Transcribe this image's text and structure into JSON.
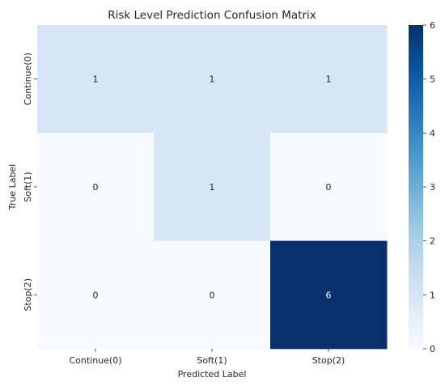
{
  "chart_data": {
    "type": "heatmap",
    "title": "Risk Level Prediction Confusion Matrix",
    "xlabel": "Predicted Label",
    "ylabel": "True Label",
    "x_categories": [
      "Continue(0)",
      "Soft(1)",
      "Stop(2)"
    ],
    "y_categories": [
      "Continue(0)",
      "Soft(1)",
      "Stop(2)"
    ],
    "values": [
      [
        1,
        1,
        1
      ],
      [
        0,
        1,
        0
      ],
      [
        0,
        0,
        6
      ]
    ],
    "colorbar": {
      "min": 0,
      "max": 6,
      "ticks": [
        0,
        1,
        2,
        3,
        4,
        5,
        6
      ]
    },
    "colormap": "Blues",
    "colors": {
      "low": "#f7fbff",
      "high": "#08306b"
    }
  }
}
